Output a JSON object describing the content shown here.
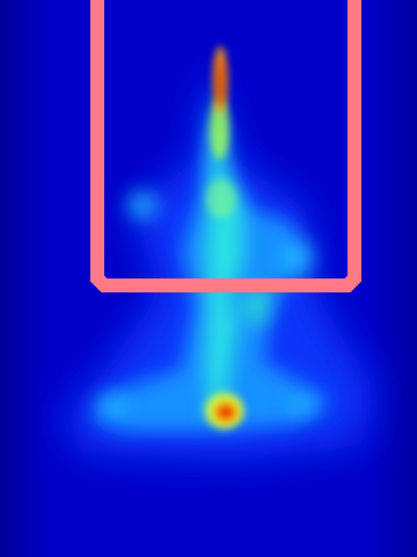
{
  "heatmap": {
    "colormap": "jet",
    "background_color": "#0000c8",
    "peak_color": "#cc0000",
    "hotspot_count": 2
  },
  "highlight_frame": {
    "color": "#ff7a85",
    "shape": "open-top-rectangle-with-chamfered-bottom-corners"
  }
}
